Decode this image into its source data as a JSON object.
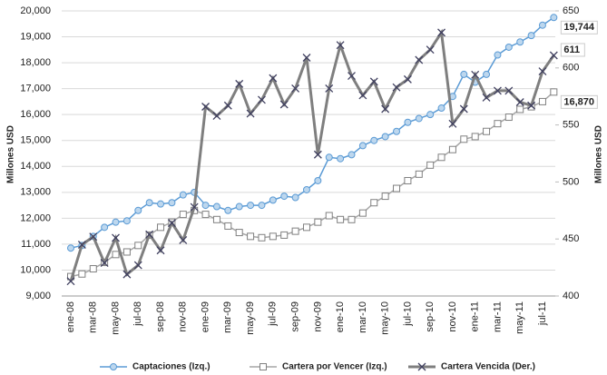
{
  "chart_data": {
    "type": "line",
    "categories": [
      "ene-08",
      null,
      "mar-08",
      null,
      "may-08",
      null,
      "jul-08",
      null,
      "sep-08",
      null,
      "nov-08",
      null,
      "ene-09",
      null,
      "mar-09",
      null,
      "may-09",
      null,
      "jul-09",
      null,
      "sep-09",
      null,
      "nov-09",
      null,
      "ene-10",
      null,
      "mar-10",
      null,
      "may-10",
      null,
      "jul-10",
      null,
      "sep-10",
      null,
      "nov-10",
      null,
      "ene-11",
      null,
      "mar-11",
      null,
      "may-11",
      null,
      "jul-11",
      null
    ],
    "ylabel": "Millones USD",
    "y2label": "Millones USD",
    "ylim": [
      9000,
      20000
    ],
    "yticks": [
      {
        "value": 9000,
        "label": "9,000"
      },
      {
        "value": 10000,
        "label": "10,000"
      },
      {
        "value": 11000,
        "label": "11,000"
      },
      {
        "value": 12000,
        "label": "12,000"
      },
      {
        "value": 13000,
        "label": "13,000"
      },
      {
        "value": 14000,
        "label": "14,000"
      },
      {
        "value": 15000,
        "label": "15,000"
      },
      {
        "value": 16000,
        "label": "16,000"
      },
      {
        "value": 17000,
        "label": "17,000"
      },
      {
        "value": 18000,
        "label": "18,000"
      },
      {
        "value": 19000,
        "label": "19,000"
      },
      {
        "value": 20000,
        "label": "20,000"
      }
    ],
    "y2lim": [
      400,
      650
    ],
    "y2ticks": [
      400,
      450,
      500,
      550,
      600,
      650
    ],
    "grid": true,
    "legend": "bottom",
    "series": [
      {
        "name": "Captaciones (Izq.)",
        "color": "#5b9bd5",
        "marker": "circle",
        "values": [
          10850,
          10950,
          11300,
          11650,
          11850,
          11900,
          12300,
          12600,
          12550,
          12600,
          12900,
          13000,
          12500,
          12450,
          12300,
          12450,
          12500,
          12500,
          12700,
          12850,
          12800,
          13100,
          13450,
          14350,
          14300,
          14450,
          14800,
          15000,
          15150,
          15350,
          15700,
          15850,
          16000,
          16250,
          16700,
          17550,
          17250,
          17550,
          18300,
          18600,
          18800,
          19050,
          19450,
          19744
        ],
        "value_labels": [
          null,
          null,
          null,
          null,
          null,
          null,
          null,
          null,
          null,
          null,
          null,
          null,
          null,
          null,
          null,
          null,
          null,
          null,
          null,
          null,
          null,
          null,
          null,
          null,
          null,
          null,
          null,
          null,
          null,
          null,
          null,
          null,
          null,
          null,
          null,
          null,
          null,
          null,
          null,
          null,
          null,
          null,
          null,
          "19,744"
        ]
      },
      {
        "name": "Cartera por Vencer (Izq.)",
        "color": "#a6a6a6",
        "marker": "square",
        "values": [
          9750,
          9850,
          10050,
          10300,
          10600,
          10700,
          10950,
          11350,
          11650,
          11850,
          12150,
          12300,
          12150,
          11950,
          11700,
          11450,
          11300,
          11250,
          11300,
          11350,
          11500,
          11650,
          11850,
          12100,
          11950,
          11950,
          12200,
          12600,
          12850,
          13150,
          13450,
          13700,
          14050,
          14350,
          14650,
          15050,
          15150,
          15350,
          15650,
          15900,
          16200,
          16300,
          16500,
          16870
        ],
        "value_labels": [
          null,
          null,
          null,
          null,
          null,
          null,
          null,
          null,
          null,
          null,
          null,
          null,
          null,
          null,
          null,
          null,
          null,
          null,
          null,
          null,
          null,
          null,
          null,
          null,
          null,
          null,
          null,
          null,
          null,
          null,
          null,
          null,
          null,
          null,
          null,
          null,
          null,
          null,
          null,
          null,
          null,
          null,
          null,
          "16,870"
        ]
      },
      {
        "name": "Cartera Vencida (Der.)",
        "color": "#7f7f7f",
        "marker": "x",
        "axis": "y2",
        "values": [
          413,
          445,
          452,
          429,
          451,
          419,
          427,
          454,
          440,
          464,
          449,
          478,
          566,
          558,
          567,
          586,
          560,
          572,
          591,
          568,
          582,
          609,
          524,
          582,
          620,
          593,
          576,
          588,
          564,
          583,
          590,
          607,
          616,
          631,
          551,
          564,
          594,
          574,
          580,
          580,
          570,
          567,
          597,
          611
        ],
        "value_labels": [
          null,
          null,
          null,
          null,
          null,
          null,
          null,
          null,
          null,
          null,
          null,
          null,
          null,
          null,
          null,
          null,
          null,
          null,
          null,
          null,
          null,
          null,
          null,
          null,
          null,
          null,
          null,
          null,
          null,
          null,
          null,
          null,
          null,
          null,
          null,
          null,
          null,
          null,
          null,
          null,
          null,
          null,
          null,
          "611"
        ]
      }
    ]
  }
}
